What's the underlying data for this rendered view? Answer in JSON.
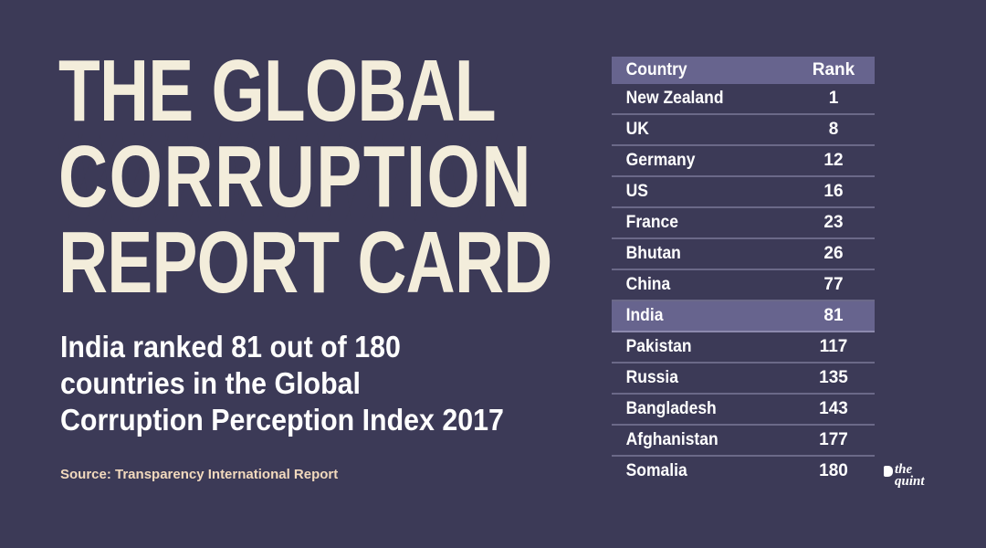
{
  "title": {
    "line1": "THE GLOBAL",
    "line2": "CORRUPTION",
    "line3": "REPORT CARD"
  },
  "subtitle": {
    "line1": "India ranked 81 out of 180",
    "line2": "countries in the Global",
    "line3": "Corruption Perception Index 2017"
  },
  "source": "Source: Transparency International Report",
  "table": {
    "headers": {
      "country": "Country",
      "rank": "Rank"
    },
    "rows": [
      {
        "country": "New Zealand",
        "rank": "1"
      },
      {
        "country": "UK",
        "rank": "8"
      },
      {
        "country": "Germany",
        "rank": "12"
      },
      {
        "country": "US",
        "rank": "16"
      },
      {
        "country": "France",
        "rank": "23"
      },
      {
        "country": "Bhutan",
        "rank": "26"
      },
      {
        "country": "China",
        "rank": "77"
      },
      {
        "country": "India",
        "rank": "81"
      },
      {
        "country": "Pakistan",
        "rank": "117"
      },
      {
        "country": "Russia",
        "rank": "135"
      },
      {
        "country": "Bangladesh",
        "rank": "143"
      },
      {
        "country": "Afghanistan",
        "rank": "177"
      },
      {
        "country": "Somalia",
        "rank": "180"
      }
    ]
  },
  "logo": {
    "line1": "the",
    "line2": "quint"
  },
  "colors": {
    "background": "#3c3a57",
    "title": "#f3eddb",
    "header_row": "#67648e",
    "highlight_row": "#67648e",
    "source_text": "#f2d9bd"
  },
  "chart_data": {
    "type": "table",
    "title": "THE GLOBAL CORRUPTION REPORT CARD",
    "subtitle": "India ranked 81 out of 180 countries in the Global Corruption Perception Index 2017",
    "columns": [
      "Country",
      "Rank"
    ],
    "categories": [
      "New Zealand",
      "UK",
      "Germany",
      "US",
      "France",
      "Bhutan",
      "China",
      "India",
      "Pakistan",
      "Russia",
      "Bangladesh",
      "Afghanistan",
      "Somalia"
    ],
    "values": [
      1,
      8,
      12,
      16,
      23,
      26,
      77,
      81,
      117,
      135,
      143,
      177,
      180
    ],
    "highlighted": "India",
    "source": "Transparency International Report"
  }
}
